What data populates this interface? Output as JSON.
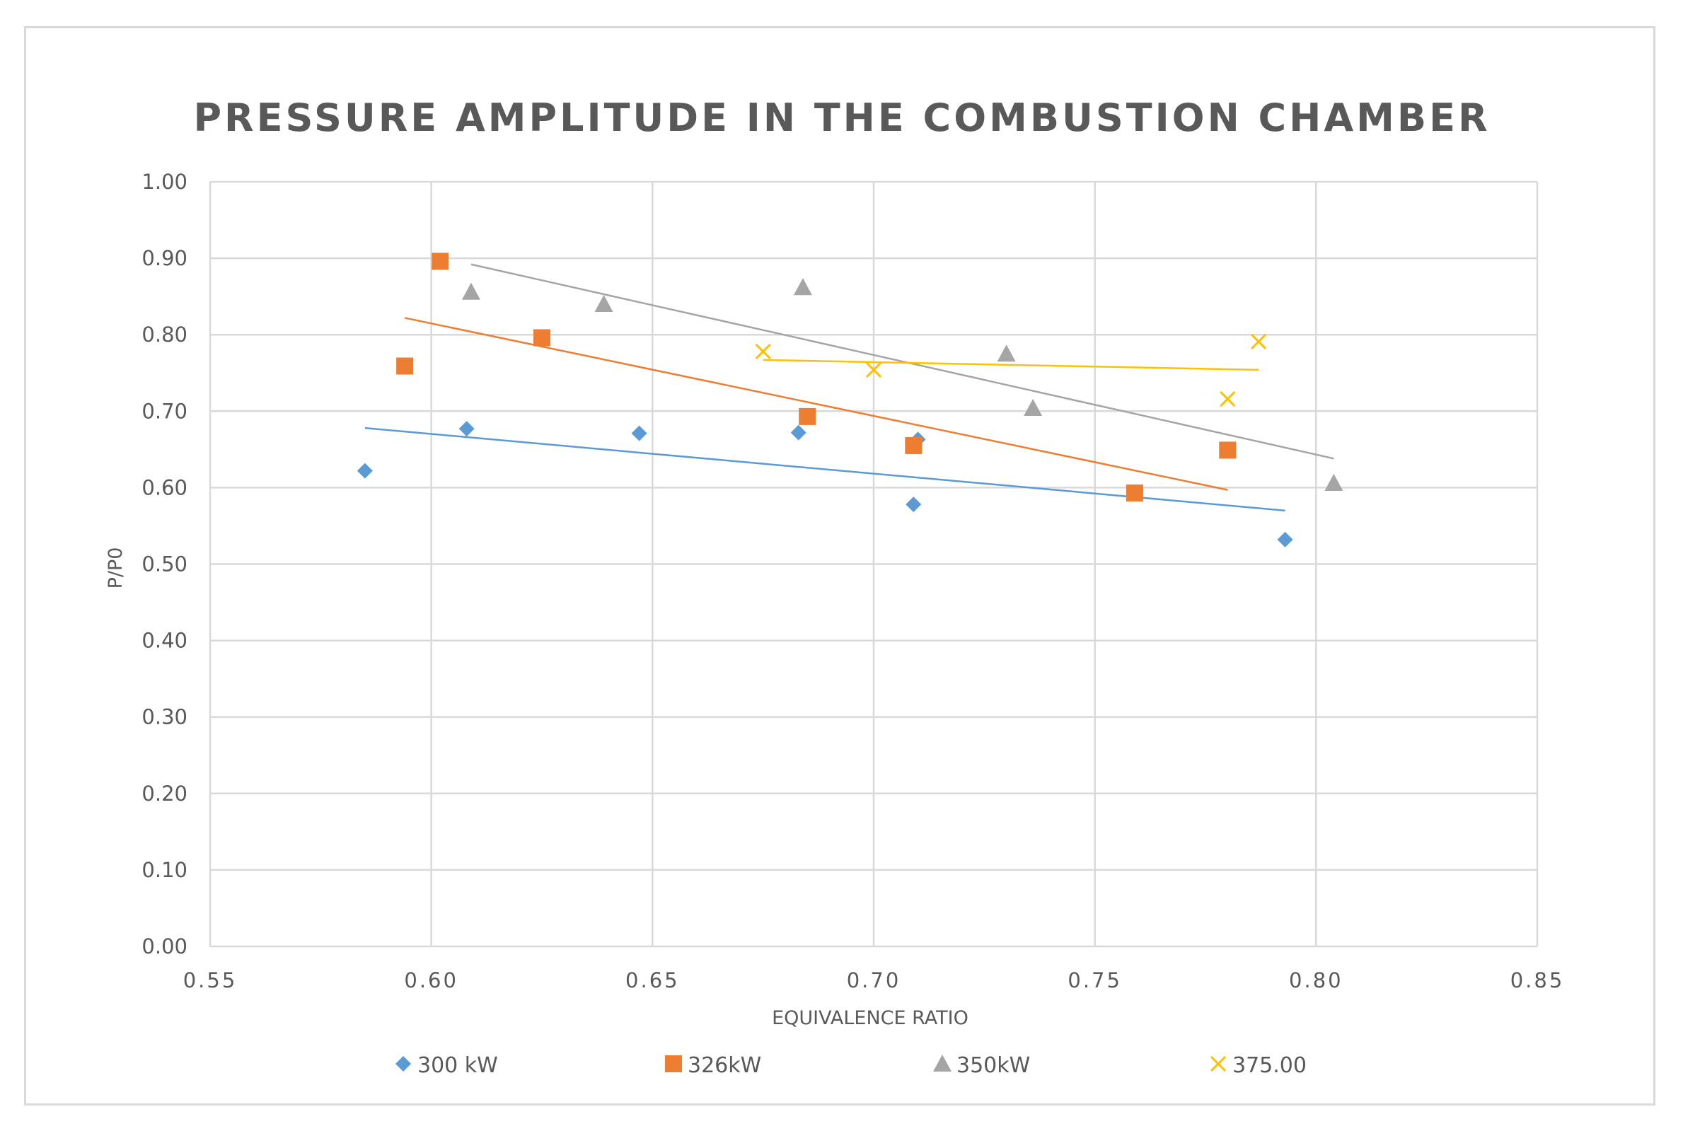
{
  "chart_data": {
    "type": "scatter",
    "title": "PRESSURE AMPLITUDE IN THE COMBUSTION CHAMBER",
    "xlabel": "EQUIVALENCE RATIO",
    "ylabel": "P/P0",
    "xlim": [
      0.55,
      0.85
    ],
    "ylim": [
      0.0,
      1.0
    ],
    "x_ticks": [
      "0.55",
      "0.60",
      "0.65",
      "0.70",
      "0.75",
      "0.80",
      "0.85"
    ],
    "y_ticks": [
      "0.00",
      "0.10",
      "0.20",
      "0.30",
      "0.40",
      "0.50",
      "0.60",
      "0.70",
      "0.80",
      "0.90",
      "1.00"
    ],
    "grid": true,
    "legend_position": "bottom",
    "series": [
      {
        "name": "300 kW",
        "marker": "diamond",
        "color": "#5b9bd5",
        "points": [
          [
            0.585,
            0.622
          ],
          [
            0.608,
            0.677
          ],
          [
            0.647,
            0.671
          ],
          [
            0.683,
            0.672
          ],
          [
            0.71,
            0.663
          ],
          [
            0.709,
            0.578
          ],
          [
            0.793,
            0.532
          ]
        ],
        "trendline": [
          [
            0.585,
            0.678
          ],
          [
            0.793,
            0.57
          ]
        ]
      },
      {
        "name": "326kW",
        "marker": "square",
        "color": "#ed7d31",
        "points": [
          [
            0.594,
            0.759
          ],
          [
            0.602,
            0.896
          ],
          [
            0.625,
            0.796
          ],
          [
            0.685,
            0.693
          ],
          [
            0.709,
            0.655
          ],
          [
            0.759,
            0.593
          ],
          [
            0.78,
            0.649
          ]
        ],
        "trendline": [
          [
            0.594,
            0.822
          ],
          [
            0.78,
            0.597
          ]
        ]
      },
      {
        "name": "350kW",
        "marker": "triangle",
        "color": "#a5a5a5",
        "points": [
          [
            0.609,
            0.856
          ],
          [
            0.639,
            0.84
          ],
          [
            0.684,
            0.862
          ],
          [
            0.73,
            0.775
          ],
          [
            0.736,
            0.704
          ],
          [
            0.804,
            0.606
          ]
        ],
        "trendline": [
          [
            0.609,
            0.892
          ],
          [
            0.804,
            0.638
          ]
        ]
      },
      {
        "name": "375.00",
        "marker": "x",
        "color": "#ffc000",
        "points": [
          [
            0.675,
            0.778
          ],
          [
            0.7,
            0.754
          ],
          [
            0.78,
            0.716
          ],
          [
            0.787,
            0.791
          ]
        ],
        "trendline": [
          [
            0.675,
            0.767
          ],
          [
            0.787,
            0.754
          ]
        ]
      }
    ]
  }
}
